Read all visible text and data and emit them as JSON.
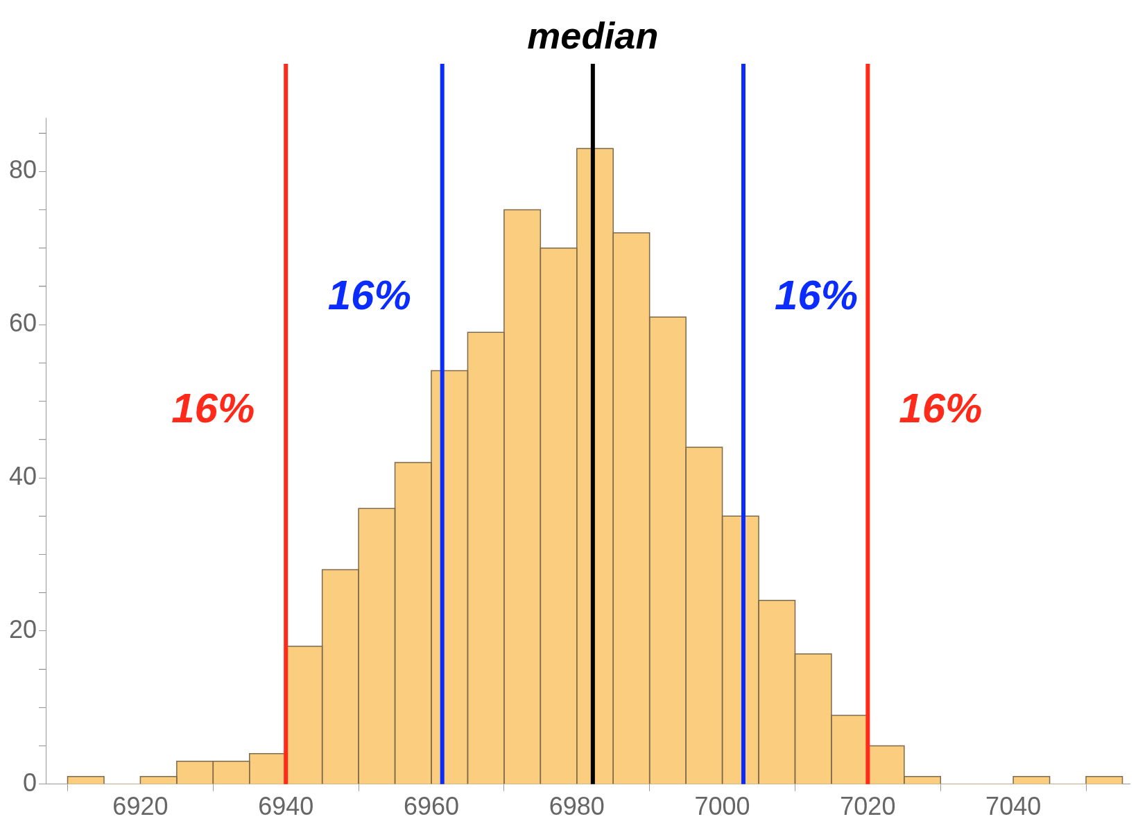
{
  "chart_data": {
    "type": "histogram",
    "color": "#fbcd7e",
    "bins": [
      6910,
      6915,
      6920,
      6925,
      6930,
      6935,
      6940,
      6945,
      6950,
      6955,
      6960,
      6965,
      6970,
      6975,
      6980,
      6985,
      6990,
      6995,
      7000,
      7005,
      7010,
      7015,
      7020,
      7025,
      7030,
      7035,
      7040,
      7045,
      7050,
      7055
    ],
    "values": [
      1,
      0,
      1,
      3,
      3,
      4,
      18,
      28,
      36,
      42,
      54,
      59,
      75,
      70,
      83,
      72,
      61,
      44,
      35,
      24,
      17,
      9,
      5,
      1,
      0,
      0,
      1,
      0,
      1
    ],
    "xlim": [
      6907,
      7056
    ],
    "xticks": [
      6920,
      6940,
      6960,
      6980,
      7000,
      7020,
      7040
    ],
    "ylim": [
      0,
      87
    ],
    "yticks": [
      0,
      {
        "value": 5,
        "label": null
      },
      {
        "value": 10,
        "label": null
      },
      {
        "value": 15,
        "label": null
      },
      20,
      {
        "value": 25,
        "label": null
      },
      {
        "value": 30,
        "label": null
      },
      {
        "value": 35,
        "label": null
      },
      40,
      {
        "value": 45,
        "label": null
      },
      {
        "value": 50,
        "label": null
      },
      {
        "value": 55,
        "label": null
      },
      60,
      {
        "value": 65,
        "label": null
      },
      {
        "value": 70,
        "label": null
      },
      {
        "value": 75,
        "label": null
      },
      80,
      {
        "value": 85,
        "label": null
      }
    ],
    "grid": false,
    "ref_lines": [
      {
        "axis": "x",
        "value": 6940,
        "color": "#ff2a1a"
      },
      {
        "axis": "x",
        "value": 6961.5,
        "color": "#0a2cff"
      },
      {
        "axis": "x",
        "value": 6982.2,
        "label": "median",
        "color": "#000000"
      },
      {
        "axis": "x",
        "value": 7002.9,
        "color": "#0a2cff"
      },
      {
        "axis": "x",
        "value": 7020,
        "color": "#ff2a1a"
      }
    ],
    "annotations": [
      "16%",
      "16%",
      "16%",
      "16%"
    ]
  }
}
